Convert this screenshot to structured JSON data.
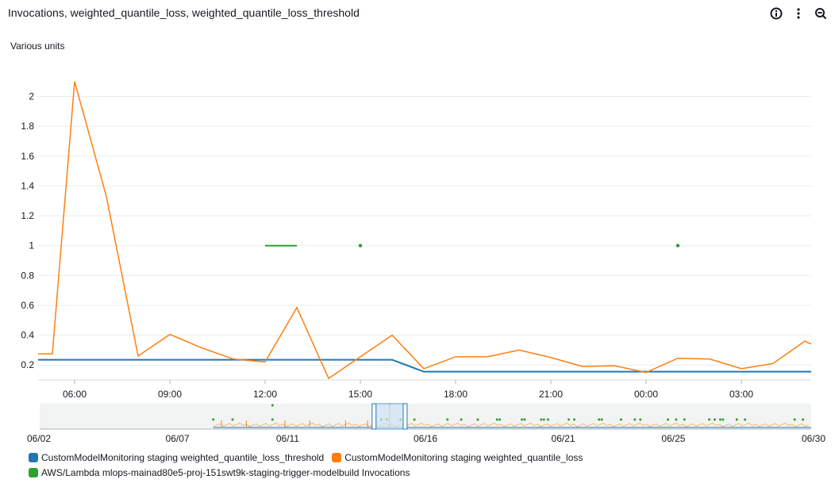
{
  "title": "Invocations, weighted_quantile_loss, weighted_quantile_loss_threshold",
  "toolbar": {
    "icons": [
      "info-icon",
      "more-actions-icon",
      "zoom-out-icon"
    ]
  },
  "chart_data": {
    "type": "line",
    "ylabel": "Various units",
    "ylim": [
      0.1,
      2.2
    ],
    "y_ticks": [
      "2",
      "1.8",
      "1.6",
      "1.4",
      "1.2",
      "1",
      "0.8",
      "0.6",
      "0.4",
      "0.2"
    ],
    "y_tick_values": [
      2,
      1.8,
      1.6,
      1.4,
      1.2,
      1,
      0.8,
      0.6,
      0.4,
      0.2
    ],
    "x_ticks": [
      "06:00",
      "09:00",
      "12:00",
      "15:00",
      "18:00",
      "21:00",
      "00:00",
      "03:00"
    ],
    "x_tick_hours": [
      6,
      9,
      12,
      15,
      18,
      21,
      24,
      27
    ],
    "xlim_hours": [
      4.85,
      29.2
    ],
    "grid": "horizontal",
    "series": [
      {
        "name": "CustomModelMonitoring staging weighted_quantile_loss_threshold",
        "color": "#1f77b4",
        "x": [
          4.85,
          16,
          17,
          29.2
        ],
        "y": [
          0.235,
          0.235,
          0.155,
          0.155
        ]
      },
      {
        "name": "CustomModelMonitoring staging weighted_quantile_loss",
        "color": "#ff7f0e",
        "x": [
          4.85,
          5.3,
          6,
          7,
          8,
          9,
          10,
          11,
          12,
          13,
          14,
          15,
          16,
          17,
          18,
          19,
          20,
          21,
          22,
          23,
          24,
          25,
          26,
          27,
          28,
          29,
          29.2
        ],
        "y": [
          0.275,
          0.275,
          2.1,
          1.33,
          0.26,
          0.405,
          0.315,
          0.24,
          0.22,
          0.585,
          0.11,
          0.255,
          0.4,
          0.175,
          0.255,
          0.255,
          0.3,
          0.25,
          0.19,
          0.195,
          0.15,
          0.245,
          0.24,
          0.175,
          0.21,
          0.36,
          0.34
        ]
      },
      {
        "name": "AWS/Lambda mlops-mainad80e5-proj-151swt9k-staging-trigger-modelbuild Invocations",
        "color": "#2ca02c",
        "segments": [
          {
            "x": [
              12,
              13
            ],
            "y": [
              1,
              1
            ]
          }
        ],
        "points": [
          {
            "x": 15,
            "y": 1
          },
          {
            "x": 25,
            "y": 1
          }
        ]
      }
    ]
  },
  "overview": {
    "x_ticks": [
      "06/02",
      "06/07",
      "06/11",
      "06/16",
      "06/21",
      "06/25",
      "06/30"
    ],
    "x_tick_days": [
      2,
      7,
      11,
      16,
      21,
      25,
      30
    ],
    "xlim_days": [
      2,
      30
    ],
    "selection_days": [
      14.15,
      15.25
    ],
    "green_dot_days": [
      8.3,
      9.0,
      10.45,
      14.4,
      14.6,
      15.1,
      15.6,
      16.8,
      17.3,
      17.9,
      18.6,
      18.7,
      19.5,
      19.6,
      20.2,
      20.3,
      20.45,
      21.2,
      21.4,
      22.3,
      22.4,
      23.1,
      23.6,
      23.8,
      24.8,
      25.1,
      25.4,
      26.3,
      26.5,
      26.7,
      26.8,
      27.3,
      27.6,
      29.4,
      29.7
    ],
    "orange_peak_days": [
      8.6,
      9.5,
      10.9,
      11.8,
      13.1,
      13.9,
      14.7
    ]
  }
}
